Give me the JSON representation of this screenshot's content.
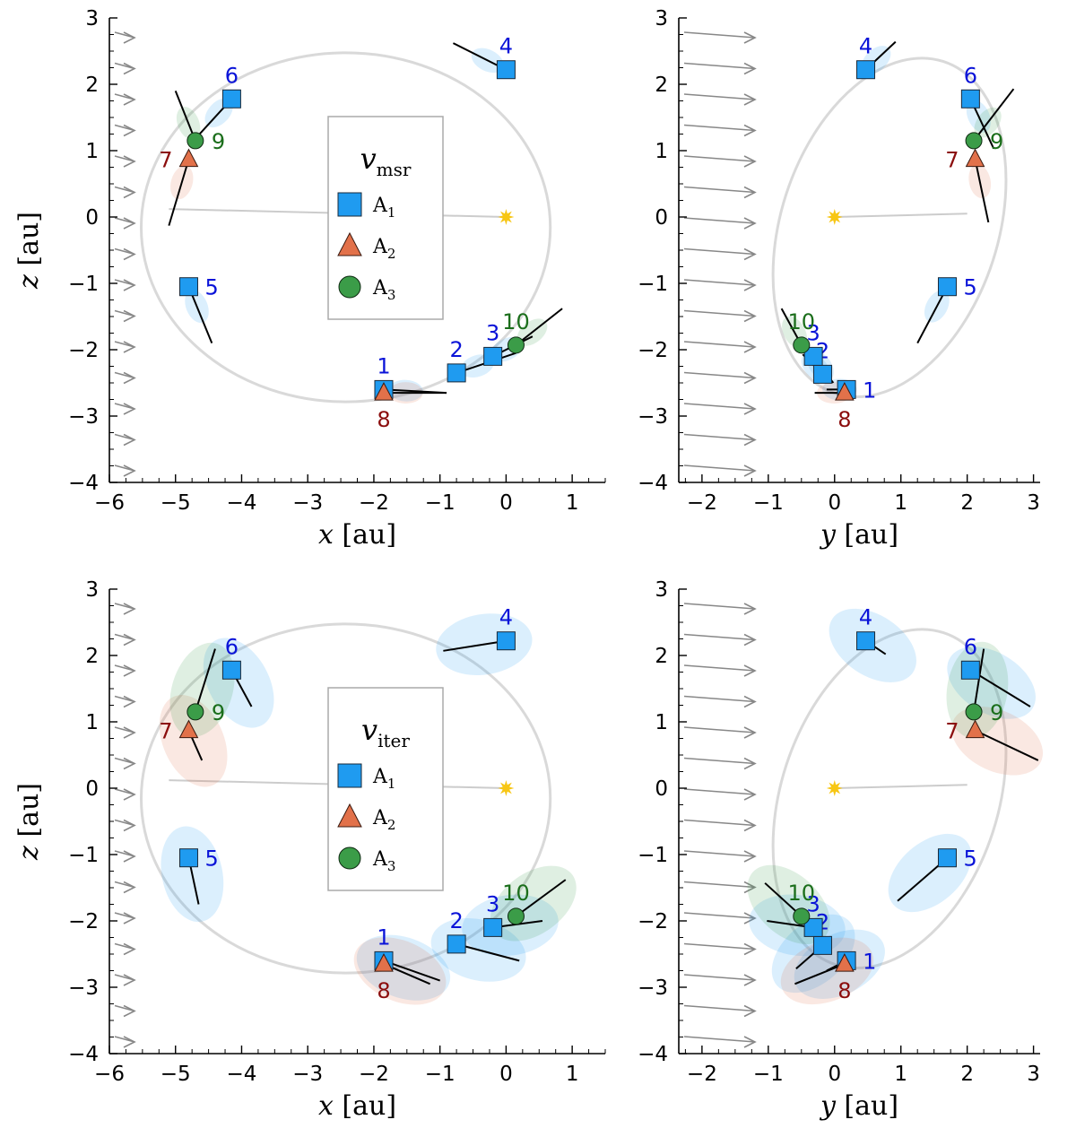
{
  "chart_data": [
    {
      "type": "scatter",
      "panel": "top-left",
      "xlabel": "x",
      "xunit": "[au]",
      "ylabel": "z",
      "yunit": "[au]",
      "xlim": [
        -6,
        1.5
      ],
      "ylim": [
        -4,
        3
      ],
      "xticks": [
        -6,
        -5,
        -4,
        -3,
        -2,
        -1,
        0,
        1
      ],
      "yticks": [
        -4,
        -3,
        -2,
        -1,
        0,
        1,
        2,
        3
      ],
      "legend": {
        "title": "v",
        "title_sub": "msr",
        "entries": [
          {
            "marker": "square",
            "label": "A",
            "sub": "1"
          },
          {
            "marker": "triangle",
            "label": "A",
            "sub": "2"
          },
          {
            "marker": "circle",
            "label": "A",
            "sub": "3"
          }
        ],
        "position": "center"
      },
      "sun": [
        0,
        0
      ],
      "points": [
        {
          "id": "1",
          "marker": "square",
          "x": -1.85,
          "y": -2.6,
          "vector": [
            0.95,
            -0.05
          ],
          "labelpos": "above"
        },
        {
          "id": "2",
          "marker": "square",
          "x": -0.75,
          "y": -2.35,
          "vector": [
            0.9,
            0.3
          ],
          "labelpos": "above"
        },
        {
          "id": "3",
          "marker": "square",
          "x": -0.2,
          "y": -2.1,
          "vector": [
            0.6,
            0.3
          ],
          "labelpos": "above"
        },
        {
          "id": "4",
          "marker": "square",
          "x": 0.0,
          "y": 2.22,
          "vector": [
            -0.8,
            0.4
          ],
          "labelpos": "above"
        },
        {
          "id": "5",
          "marker": "square",
          "x": -4.8,
          "y": -1.05,
          "vector": [
            0.35,
            -0.85
          ],
          "labelpos": "right"
        },
        {
          "id": "6",
          "marker": "square",
          "x": -4.15,
          "y": 1.78,
          "vector": [
            -0.55,
            -0.6
          ],
          "labelpos": "above"
        },
        {
          "id": "7",
          "marker": "triangle",
          "x": -4.8,
          "y": 0.87,
          "vector": [
            -0.3,
            -1.0
          ],
          "labelpos": "left"
        },
        {
          "id": "8",
          "marker": "triangle",
          "x": -1.85,
          "y": -2.65,
          "vector": [
            0.95,
            0.0
          ],
          "labelpos": "below"
        },
        {
          "id": "9",
          "marker": "circle",
          "x": -4.7,
          "y": 1.15,
          "vector": [
            -0.3,
            0.75
          ],
          "labelpos": "right"
        },
        {
          "id": "10",
          "marker": "circle",
          "x": 0.15,
          "y": -1.93,
          "vector": [
            0.7,
            0.55
          ],
          "labelpos": "above"
        }
      ]
    },
    {
      "type": "scatter",
      "panel": "top-right",
      "xlabel": "y",
      "xunit": "[au]",
      "ylabel": "",
      "yunit": "",
      "xlim": [
        -2.35,
        3.1
      ],
      "ylim": [
        -4,
        3
      ],
      "xticks": [
        -2,
        -1,
        0,
        1,
        2,
        3
      ],
      "yticks": [
        -4,
        -3,
        -2,
        -1,
        0,
        1,
        2,
        3
      ],
      "sun": [
        0,
        0
      ],
      "points": [
        {
          "id": "1",
          "marker": "square",
          "x": 0.18,
          "y": -2.6,
          "vector": [
            -0.3,
            0.0
          ],
          "labelpos": "right"
        },
        {
          "id": "2",
          "marker": "square",
          "x": -0.18,
          "y": -2.37,
          "vector": [
            -0.3,
            0.3
          ],
          "labelpos": "above"
        },
        {
          "id": "3",
          "marker": "square",
          "x": -0.32,
          "y": -2.1,
          "vector": [
            0.3,
            -0.4
          ],
          "labelpos": "above"
        },
        {
          "id": "4",
          "marker": "square",
          "x": 0.47,
          "y": 2.22,
          "vector": [
            0.45,
            0.42
          ],
          "labelpos": "above"
        },
        {
          "id": "5",
          "marker": "square",
          "x": 1.7,
          "y": -1.05,
          "vector": [
            -0.45,
            -0.85
          ],
          "labelpos": "right"
        },
        {
          "id": "6",
          "marker": "square",
          "x": 2.05,
          "y": 1.78,
          "vector": [
            0.35,
            -0.75
          ],
          "labelpos": "above"
        },
        {
          "id": "7",
          "marker": "triangle",
          "x": 2.12,
          "y": 0.87,
          "vector": [
            0.2,
            -0.95
          ],
          "labelpos": "left"
        },
        {
          "id": "8",
          "marker": "triangle",
          "x": 0.15,
          "y": -2.65,
          "vector": [
            -0.45,
            0.0
          ],
          "labelpos": "below"
        },
        {
          "id": "9",
          "marker": "circle",
          "x": 2.1,
          "y": 1.15,
          "vector": [
            0.6,
            0.78
          ],
          "labelpos": "right"
        },
        {
          "id": "10",
          "marker": "circle",
          "x": -0.5,
          "y": -1.93,
          "vector": [
            -0.3,
            0.55
          ],
          "labelpos": "above"
        }
      ]
    },
    {
      "type": "scatter",
      "panel": "bottom-left",
      "xlabel": "x",
      "xunit": "[au]",
      "ylabel": "z",
      "yunit": "[au]",
      "xlim": [
        -6,
        1.5
      ],
      "ylim": [
        -4,
        3
      ],
      "xticks": [
        -6,
        -5,
        -4,
        -3,
        -2,
        -1,
        0,
        1
      ],
      "yticks": [
        -4,
        -3,
        -2,
        -1,
        0,
        1,
        2,
        3
      ],
      "legend": {
        "title": "v",
        "title_sub": "iter",
        "entries": [
          {
            "marker": "square",
            "label": "A",
            "sub": "1"
          },
          {
            "marker": "triangle",
            "label": "A",
            "sub": "2"
          },
          {
            "marker": "circle",
            "label": "A",
            "sub": "3"
          }
        ],
        "position": "center"
      },
      "sun": [
        0,
        0
      ],
      "points": [
        {
          "id": "1",
          "marker": "square",
          "x": -1.85,
          "y": -2.6,
          "vector": [
            0.85,
            -0.3
          ],
          "labelpos": "above"
        },
        {
          "id": "2",
          "marker": "square",
          "x": -0.75,
          "y": -2.35,
          "vector": [
            0.95,
            -0.25
          ],
          "labelpos": "above"
        },
        {
          "id": "3",
          "marker": "square",
          "x": -0.2,
          "y": -2.1,
          "vector": [
            0.75,
            0.1
          ],
          "labelpos": "above"
        },
        {
          "id": "4",
          "marker": "square",
          "x": 0.0,
          "y": 2.22,
          "vector": [
            -0.95,
            -0.15
          ],
          "labelpos": "above"
        },
        {
          "id": "5",
          "marker": "square",
          "x": -4.8,
          "y": -1.05,
          "vector": [
            0.15,
            -0.7
          ],
          "labelpos": "right"
        },
        {
          "id": "6",
          "marker": "square",
          "x": -4.15,
          "y": 1.78,
          "vector": [
            0.3,
            -0.55
          ],
          "labelpos": "above"
        },
        {
          "id": "7",
          "marker": "triangle",
          "x": -4.8,
          "y": 0.87,
          "vector": [
            0.2,
            -0.45
          ],
          "labelpos": "left"
        },
        {
          "id": "8",
          "marker": "triangle",
          "x": -1.85,
          "y": -2.65,
          "vector": [
            0.7,
            -0.3
          ],
          "labelpos": "below"
        },
        {
          "id": "9",
          "marker": "circle",
          "x": -4.7,
          "y": 1.15,
          "vector": [
            0.3,
            0.95
          ],
          "labelpos": "right"
        },
        {
          "id": "10",
          "marker": "circle",
          "x": 0.15,
          "y": -1.93,
          "vector": [
            0.75,
            0.55
          ],
          "labelpos": "above"
        }
      ]
    },
    {
      "type": "scatter",
      "panel": "bottom-right",
      "xlabel": "y",
      "xunit": "[au]",
      "ylabel": "",
      "yunit": "",
      "xlim": [
        -2.35,
        3.1
      ],
      "ylim": [
        -4,
        3
      ],
      "xticks": [
        -2,
        -1,
        0,
        1,
        2,
        3
      ],
      "yticks": [
        -4,
        -3,
        -2,
        -1,
        0,
        1,
        2,
        3
      ],
      "sun": [
        0,
        0
      ],
      "points": [
        {
          "id": "1",
          "marker": "square",
          "x": 0.18,
          "y": -2.6,
          "vector": [
            -0.3,
            -0.15
          ],
          "labelpos": "right"
        },
        {
          "id": "2",
          "marker": "square",
          "x": -0.18,
          "y": -2.37,
          "vector": [
            -0.4,
            -0.35
          ],
          "labelpos": "above"
        },
        {
          "id": "3",
          "marker": "square",
          "x": -0.32,
          "y": -2.1,
          "vector": [
            -0.7,
            0.1
          ],
          "labelpos": "above"
        },
        {
          "id": "4",
          "marker": "square",
          "x": 0.47,
          "y": 2.22,
          "vector": [
            0.3,
            -0.2
          ],
          "labelpos": "above"
        },
        {
          "id": "5",
          "marker": "square",
          "x": 1.7,
          "y": -1.05,
          "vector": [
            -0.75,
            -0.65
          ],
          "labelpos": "right"
        },
        {
          "id": "6",
          "marker": "square",
          "x": 2.05,
          "y": 1.78,
          "vector": [
            0.9,
            -0.55
          ],
          "labelpos": "above"
        },
        {
          "id": "7",
          "marker": "triangle",
          "x": 2.12,
          "y": 0.87,
          "vector": [
            0.95,
            -0.45
          ],
          "labelpos": "left"
        },
        {
          "id": "8",
          "marker": "triangle",
          "x": 0.15,
          "y": -2.65,
          "vector": [
            -0.75,
            -0.3
          ],
          "labelpos": "below"
        },
        {
          "id": "9",
          "marker": "circle",
          "x": 2.1,
          "y": 1.15,
          "vector": [
            0.15,
            0.95
          ],
          "labelpos": "right"
        },
        {
          "id": "10",
          "marker": "circle",
          "x": -0.5,
          "y": -1.93,
          "vector": [
            -0.55,
            0.5
          ],
          "labelpos": "above"
        }
      ]
    }
  ],
  "colors": {
    "A1": "#1f9bf0",
    "A2": "#e2714a",
    "A3": "#3b9c48",
    "label_A1": "#0a13d8",
    "label_A2": "#8b0d0d",
    "label_A3": "#1b6e1b",
    "sun": "#f7c614",
    "orbit": "#cccccc",
    "flow_arrow": "#888888"
  }
}
